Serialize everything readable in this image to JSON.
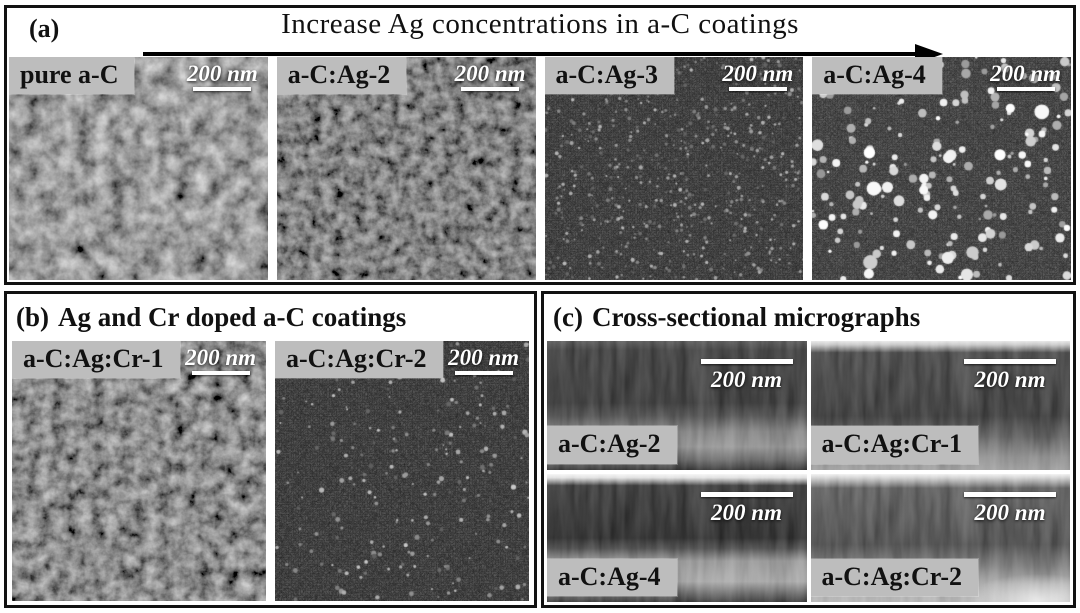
{
  "figure": {
    "panel_a": {
      "label": "(a)",
      "title": "Increase Ag concentrations in a-C coatings",
      "micrographs": [
        {
          "label": "pure a-C",
          "scale_bar": "200 nm",
          "texture": "granular-coarse"
        },
        {
          "label": "a-C:Ag-2",
          "scale_bar": "200 nm",
          "texture": "granular-dark"
        },
        {
          "label": "a-C:Ag-3",
          "scale_bar": "200 nm",
          "texture": "speckle-fine"
        },
        {
          "label": "a-C:Ag-4",
          "scale_bar": "200 nm",
          "texture": "dots-large"
        }
      ]
    },
    "panel_b": {
      "label": "(b)",
      "title": "Ag and Cr doped a-C coatings",
      "micrographs": [
        {
          "label": "a-C:Ag:Cr-1",
          "scale_bar": "200 nm",
          "texture": "granular-medium"
        },
        {
          "label": "a-C:Ag:Cr-2",
          "scale_bar": "200 nm",
          "texture": "dots-sparse"
        }
      ]
    },
    "panel_c": {
      "label": "(c)",
      "title": "Cross-sectional micrographs",
      "micrographs": [
        {
          "label": "a-C:Ag-2",
          "scale_bar": "200 nm",
          "view": "cross-section"
        },
        {
          "label": "a-C:Ag:Cr-1",
          "scale_bar": "200 nm",
          "view": "cross-section"
        },
        {
          "label": "a-C:Ag-4",
          "scale_bar": "200 nm",
          "view": "cross-section"
        },
        {
          "label": "a-C:Ag:Cr-2",
          "scale_bar": "200 nm",
          "view": "cross-section"
        }
      ]
    },
    "colors": {
      "panel_border": "#111111",
      "label_box_bg": "#bdbdbd",
      "label_text": "#111111",
      "scale_bar": "#ffffff",
      "arrow": "#000000"
    }
  }
}
